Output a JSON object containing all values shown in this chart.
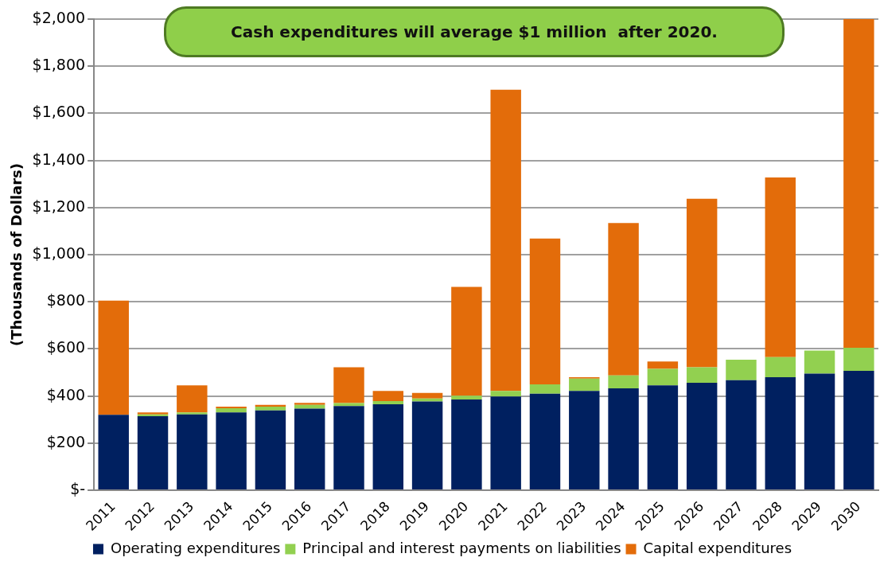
{
  "chart_data": {
    "type": "bar",
    "title": "Cash expenditures will average $1 million  after 2020.",
    "ylabel": "(Thousands of Dollars)",
    "categories": [
      "2011",
      "2012",
      "2013",
      "2014",
      "2015",
      "2016",
      "2017",
      "2018",
      "2019",
      "2020",
      "2021",
      "2022",
      "2023",
      "2024",
      "2025",
      "2026",
      "2027",
      "2028",
      "2029",
      "2030"
    ],
    "series": [
      {
        "name": "Operating expenditures",
        "color": "#002060",
        "values": [
          320,
          314,
          322,
          330,
          339,
          346,
          357,
          365,
          377,
          385,
          398,
          410,
          421,
          432,
          445,
          456,
          467,
          480,
          495,
          507
        ]
      },
      {
        "name": "Principal and interest payments on liabilities",
        "color": "#92d050",
        "values": [
          0,
          8,
          8,
          18,
          16,
          16,
          13,
          13,
          12,
          16,
          23,
          39,
          53,
          55,
          70,
          66,
          87,
          85,
          98,
          98
        ]
      },
      {
        "name": "Capital expenditures",
        "color": "#e36c0a",
        "values": [
          485,
          8,
          115,
          7,
          7,
          9,
          152,
          43,
          24,
          462,
          1279,
          619,
          6,
          647,
          31,
          715,
          0,
          763,
          0,
          1395
        ]
      }
    ],
    "stacked": true,
    "ylim": [
      0,
      2000
    ],
    "yticks": [
      {
        "value": 0,
        "label": "$-"
      },
      {
        "value": 200,
        "label": "$200"
      },
      {
        "value": 400,
        "label": "$400"
      },
      {
        "value": 600,
        "label": "$600"
      },
      {
        "value": 800,
        "label": "$800"
      },
      {
        "value": 1000,
        "label": "$1,000"
      },
      {
        "value": 1200,
        "label": "$1,200"
      },
      {
        "value": 1400,
        "label": "$1,400"
      },
      {
        "value": 1600,
        "label": "$1,600"
      },
      {
        "value": 1800,
        "label": "$1,800"
      },
      {
        "value": 2000,
        "label": "$2,000"
      }
    ],
    "grid": "y",
    "legend": "bottom"
  }
}
